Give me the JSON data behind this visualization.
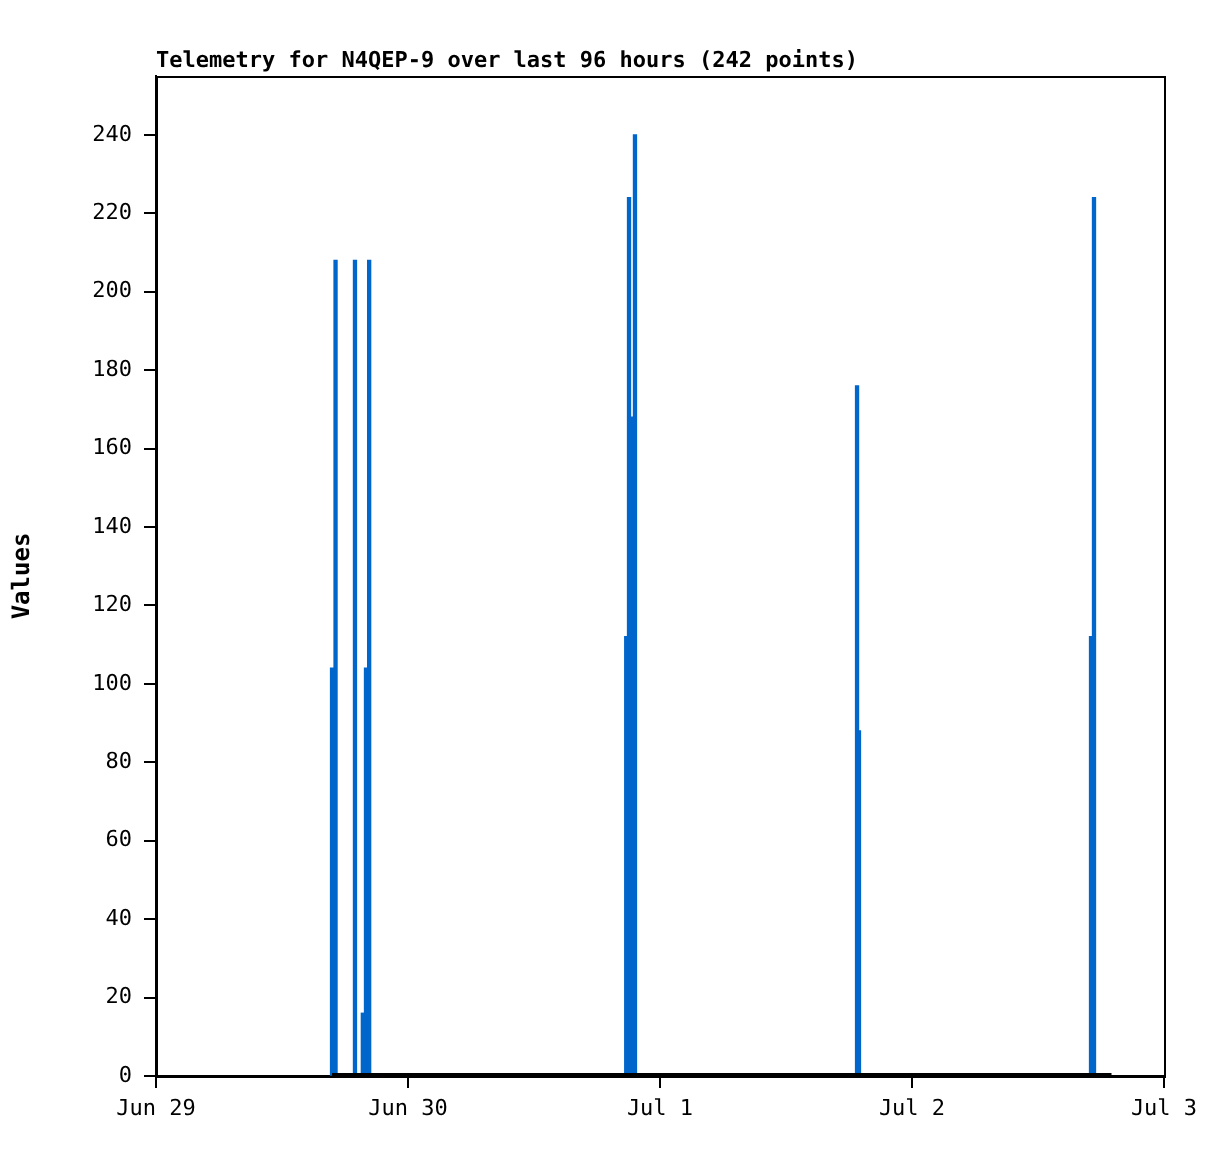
{
  "chart_data": {
    "type": "bar",
    "title": "Telemetry for N4QEP-9 over last 96 hours (242 points)",
    "ylabel": "Values",
    "xlim": [
      "--06-29",
      "--07-03"
    ],
    "xticks": [
      {
        "value": "--06-29",
        "label": "Jun 29"
      },
      {
        "value": "--06-30",
        "label": "Jun 30"
      },
      {
        "value": "--07-01",
        "label": "Jul 1"
      },
      {
        "value": "--07-02",
        "label": "Jul 2"
      },
      {
        "value": "--07-03",
        "label": "Jul 3"
      }
    ],
    "ylim": [
      0,
      255
    ],
    "yticks": [
      0,
      20,
      40,
      60,
      80,
      100,
      120,
      140,
      160,
      180,
      200,
      220,
      240
    ],
    "grid": false,
    "legend": false,
    "series": [
      {
        "type": "line",
        "color": "#000000",
        "x": [
          "--06-29T16:46",
          "--07-02T19:00"
        ],
        "values": [
          0,
          0
        ]
      },
      {
        "color": "#0066cc",
        "x": [
          "--06-29T16:46",
          "--06-29T17:06",
          "--06-29T18:57",
          "--06-29T19:42",
          "--06-29T20:00",
          "--06-29T20:18",
          "--06-30T20:47",
          "--06-30T21:03",
          "--06-30T21:14",
          "--06-30T21:37",
          "--07-01T18:46",
          "--07-01T18:57",
          "--07-02T17:03",
          "--07-02T17:20"
        ],
        "values": [
          104,
          208,
          208,
          16,
          104,
          208,
          112,
          224,
          168,
          240,
          176,
          88,
          112,
          224
        ]
      }
    ]
  }
}
